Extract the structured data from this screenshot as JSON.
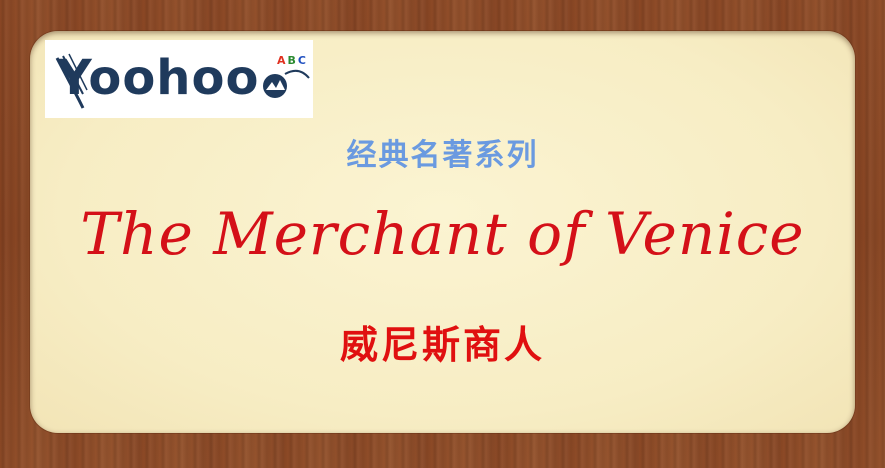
{
  "logo": {
    "text": "Yoohoo",
    "badge": "ABC"
  },
  "series_label": "经典名著系列",
  "title_english": "The Merchant of Venice",
  "title_chinese": "威尼斯商人",
  "colors": {
    "frame": "#8a4a28",
    "panel": "#f7edc4",
    "series_label": "#6a9ae0",
    "title_english": "#d41018",
    "title_chinese": "#e01010",
    "logo": "#1f3a5c"
  }
}
